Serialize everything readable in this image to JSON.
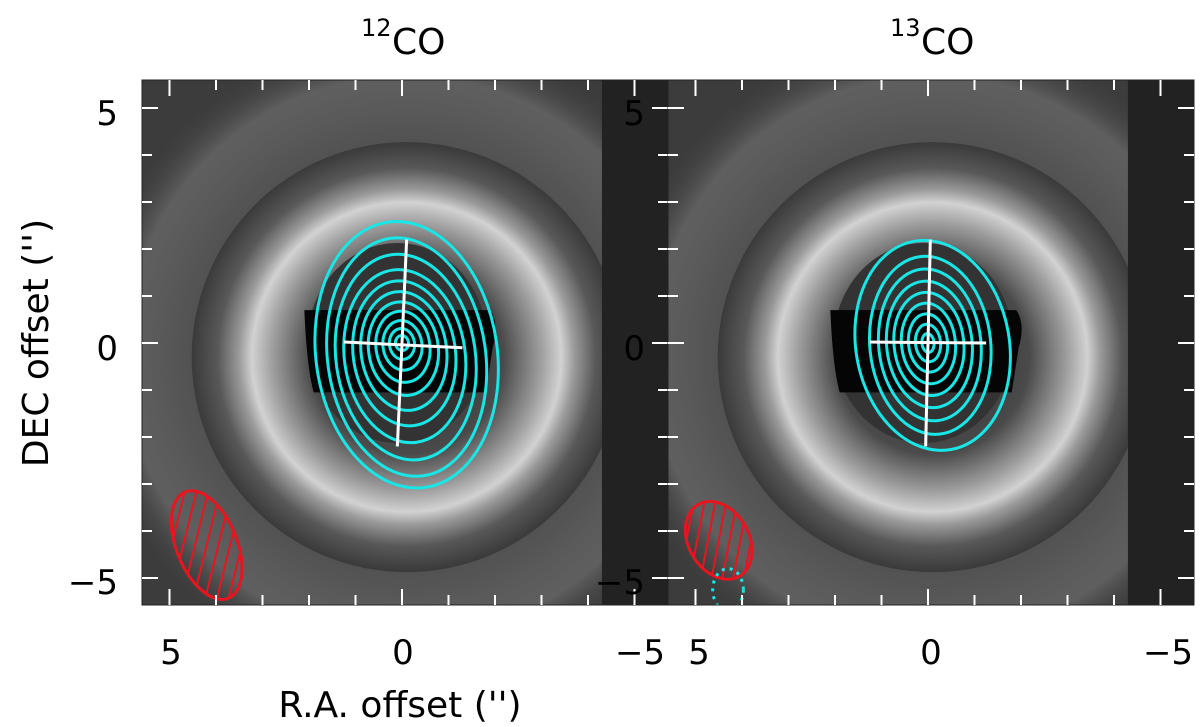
{
  "chart_data": [
    {
      "type": "image",
      "title_isotope": "12",
      "title_species": "CO",
      "xlabel": "R.A. offset ('')",
      "ylabel": "DEC offset ('')",
      "xlim": [
        5.5,
        -5.5
      ],
      "ylim": [
        -5.5,
        5.5
      ],
      "xticks": [
        5,
        0,
        -5
      ],
      "yticks": [
        5,
        0,
        -5
      ],
      "contour_color": "#19e6e6",
      "beam_color": "#e8141e",
      "contours": [
        {
          "rx": 1.95,
          "ry": 2.85,
          "cx": -0.1,
          "cy": -0.25,
          "tilt": -8
        },
        {
          "rx": 1.7,
          "ry": 2.55,
          "cx": -0.1,
          "cy": -0.3,
          "tilt": -8
        },
        {
          "rx": 1.5,
          "ry": 2.2,
          "cx": -0.08,
          "cy": -0.3,
          "tilt": -8
        },
        {
          "rx": 1.3,
          "ry": 1.85,
          "cx": -0.06,
          "cy": -0.28,
          "tilt": -8
        },
        {
          "rx": 1.1,
          "ry": 1.55,
          "cx": -0.05,
          "cy": -0.22,
          "tilt": -8
        },
        {
          "rx": 0.92,
          "ry": 1.27,
          "cx": -0.04,
          "cy": -0.17,
          "tilt": -8
        },
        {
          "rx": 0.75,
          "ry": 1.0,
          "cx": -0.03,
          "cy": -0.12,
          "tilt": -8
        },
        {
          "rx": 0.58,
          "ry": 0.76,
          "cx": -0.02,
          "cy": -0.08,
          "tilt": -8
        },
        {
          "rx": 0.42,
          "ry": 0.53,
          "cx": -0.01,
          "cy": -0.05,
          "tilt": -8
        },
        {
          "rx": 0.27,
          "ry": 0.33,
          "cx": 0.0,
          "cy": -0.02,
          "tilt": -8
        },
        {
          "rx": 0.14,
          "ry": 0.16,
          "cx": 0.0,
          "cy": 0.0,
          "tilt": -8
        }
      ],
      "major_axis": {
        "x1": -0.1,
        "y1": 2.2,
        "x2": 0.1,
        "y2": -2.2
      },
      "minor_axis": {
        "x1": 1.25,
        "y1": 0.02,
        "x2": -1.3,
        "y2": -0.1
      },
      "beams": [
        {
          "cx": 4.2,
          "cy": -4.3,
          "rx": 0.65,
          "ry": 1.22,
          "tilt": -22,
          "hatched": true
        }
      ]
    },
    {
      "type": "image",
      "title_isotope": "13",
      "title_species": "CO",
      "xlim": [
        5.5,
        -5.5
      ],
      "ylim": [
        -5.5,
        5.5
      ],
      "xticks": [
        5,
        0,
        -5
      ],
      "yticks": [
        5,
        0,
        -5
      ],
      "contour_color": "#19e6e6",
      "beam_color": "#e8141e",
      "contours": [
        {
          "rx": 1.65,
          "ry": 2.25,
          "cx": -0.1,
          "cy": -0.05,
          "tilt": -10
        },
        {
          "rx": 1.3,
          "ry": 1.9,
          "cx": -0.05,
          "cy": -0.05,
          "tilt": -6
        },
        {
          "rx": 1.1,
          "ry": 1.62,
          "cx": -0.04,
          "cy": -0.04,
          "tilt": -6
        },
        {
          "rx": 0.92,
          "ry": 1.35,
          "cx": -0.03,
          "cy": -0.03,
          "tilt": -6
        },
        {
          "rx": 0.75,
          "ry": 1.1,
          "cx": -0.02,
          "cy": -0.02,
          "tilt": -6
        },
        {
          "rx": 0.58,
          "ry": 0.86,
          "cx": -0.01,
          "cy": -0.01,
          "tilt": -6
        },
        {
          "rx": 0.42,
          "ry": 0.62,
          "cx": 0.0,
          "cy": 0.0,
          "tilt": -6
        },
        {
          "rx": 0.27,
          "ry": 0.4,
          "cx": 0.0,
          "cy": 0.0,
          "tilt": -6
        },
        {
          "rx": 0.13,
          "ry": 0.2,
          "cx": 0.0,
          "cy": 0.0,
          "tilt": -6
        }
      ],
      "major_axis": {
        "x1": -0.05,
        "y1": 2.2,
        "x2": 0.05,
        "y2": -2.2
      },
      "minor_axis": {
        "x1": 1.25,
        "y1": 0.02,
        "x2": -1.25,
        "y2": 0.0
      },
      "beams": [
        {
          "cx": 4.5,
          "cy": -4.2,
          "rx": 0.65,
          "ry": 0.88,
          "tilt": -30,
          "hatched": true
        },
        {
          "cx": 4.3,
          "cy": -5.25,
          "rx": 0.33,
          "ry": 0.45,
          "tilt": 0,
          "hatched": false,
          "dotted": true,
          "color": "#19e6e6"
        }
      ]
    }
  ]
}
